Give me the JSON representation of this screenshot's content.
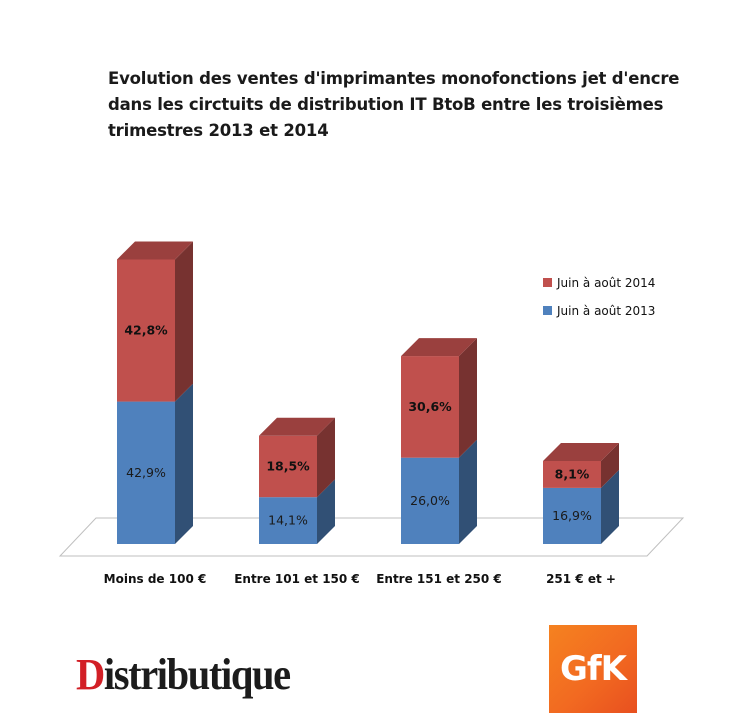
{
  "title": "Evolution des ventes d'imprimantes monofonctions jet d'encre dans les circtuits de distribution IT BtoB entre les troisièmes trimestres 2013 et 2014",
  "chart_data": {
    "type": "bar",
    "stacked": true,
    "three_d": true,
    "title": "Evolution des ventes d'imprimantes monofonctions jet d'encre dans les circtuits de distribution IT BtoB entre les troisièmes trimestres 2013 et 2014",
    "categories": [
      "Moins de 100 €",
      "Entre 101 et 150 €",
      "Entre 151 et 250 €",
      "251 € et +"
    ],
    "series": [
      {
        "name": "Juin à août 2013",
        "values": [
          42.9,
          14.1,
          26.0,
          16.9
        ],
        "labels": [
          "42,9%",
          "14,1%",
          "26,0%",
          "16,9%"
        ],
        "color": "#4f81bd"
      },
      {
        "name": "Juin à août 2014",
        "values": [
          42.8,
          18.5,
          30.6,
          8.1
        ],
        "labels": [
          "42,8%",
          "18,5%",
          "30,6%",
          "8,1%"
        ],
        "color": "#c0504d"
      }
    ],
    "ylim": [
      0,
      90
    ],
    "grid": false,
    "legend_position": "top-right"
  },
  "legend": [
    {
      "label": "Juin à août 2014",
      "color": "#c0504d"
    },
    {
      "label": "Juin à août 2013",
      "color": "#4f81bd"
    }
  ],
  "logos": {
    "left": {
      "text": "Distributique",
      "accent_letter": "D",
      "rest": "istributique",
      "color": "#1c1c1c",
      "accent_color": "#d21f26"
    },
    "right": {
      "text": "GfK",
      "color": "#f26a21"
    }
  }
}
